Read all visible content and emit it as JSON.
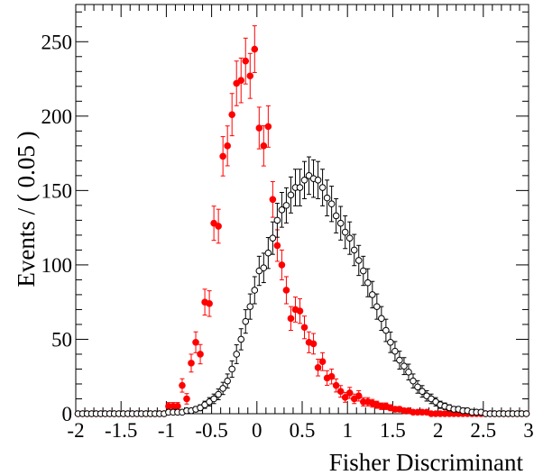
{
  "chart_data": {
    "type": "scatter",
    "title": "",
    "xlabel": "Fisher Discriminant",
    "ylabel": "Events / ( 0.05 )",
    "xlim": [
      -2,
      3
    ],
    "ylim": [
      0,
      275
    ],
    "x_ticks": [
      -2,
      -1.5,
      -1,
      -0.5,
      0,
      0.5,
      1,
      1.5,
      2,
      2.5,
      3
    ],
    "x_tick_labels": [
      "-2",
      "-1.5",
      "-1",
      "-0.5",
      "0",
      "0.5",
      "1",
      "1.5",
      "2",
      "2.5",
      "3"
    ],
    "y_ticks": [
      0,
      50,
      100,
      150,
      200,
      250
    ],
    "y_tick_labels": [
      "0",
      "50",
      "100",
      "150",
      "200",
      "250"
    ],
    "grid": false,
    "legend": "none",
    "series": [
      {
        "marker": "filled-circle",
        "color": "#ff0000",
        "x": [
          -1.975,
          -1.925,
          -1.875,
          -1.825,
          -1.775,
          -1.725,
          -1.675,
          -1.625,
          -1.575,
          -1.525,
          -1.475,
          -1.425,
          -1.375,
          -1.325,
          -1.275,
          -1.225,
          -1.175,
          -1.125,
          -1.075,
          -1.025,
          -0.975,
          -0.925,
          -0.875,
          -0.825,
          -0.775,
          -0.725,
          -0.675,
          -0.625,
          -0.575,
          -0.525,
          -0.475,
          -0.425,
          -0.375,
          -0.325,
          -0.275,
          -0.225,
          -0.175,
          -0.125,
          -0.075,
          -0.025,
          0.025,
          0.075,
          0.125,
          0.175,
          0.225,
          0.275,
          0.325,
          0.375,
          0.425,
          0.475,
          0.525,
          0.575,
          0.625,
          0.675,
          0.725,
          0.775,
          0.825,
          0.875,
          0.925,
          0.975,
          1.025,
          1.075,
          1.125,
          1.175,
          1.225,
          1.275,
          1.325,
          1.375,
          1.425,
          1.475,
          1.525,
          1.575,
          1.625,
          1.675,
          1.725,
          1.775,
          1.825,
          1.875,
          1.925,
          1.975,
          2.025,
          2.075,
          2.125,
          2.175,
          2.225,
          2.275,
          2.325,
          2.375,
          2.425,
          2.475,
          2.525,
          2.575,
          2.625,
          2.675,
          2.725,
          2.775,
          2.825,
          2.875,
          2.925,
          2.975
        ],
        "y": [
          0,
          0,
          0,
          0,
          0,
          0,
          0,
          0,
          0,
          0,
          0,
          0,
          0,
          0,
          0,
          0,
          0,
          0,
          0,
          0,
          5,
          5,
          5,
          19,
          10,
          34,
          48,
          40,
          75,
          74,
          128,
          126,
          173,
          180,
          201,
          222,
          224,
          237,
          227,
          245,
          192,
          180,
          193,
          144,
          113,
          100,
          83,
          64,
          70,
          69,
          58,
          48,
          47,
          31,
          35,
          24,
          25,
          19,
          15,
          11,
          14,
          10,
          12,
          8,
          8,
          7,
          6,
          5,
          5,
          4,
          3,
          3,
          2,
          2,
          1,
          1,
          1,
          1,
          0,
          0,
          0,
          0,
          0,
          0,
          0,
          0,
          0,
          0,
          0,
          0,
          0,
          0,
          0,
          0,
          0,
          0,
          0,
          0,
          0,
          0
        ],
        "err": [
          0,
          0,
          0,
          0,
          0,
          0,
          0,
          0,
          0,
          0,
          0,
          0,
          0,
          0,
          0,
          0,
          0,
          0,
          0,
          0,
          2.5,
          2.5,
          2.5,
          4.5,
          3.5,
          6.0,
          7.0,
          6.5,
          8.7,
          8.6,
          11.5,
          11.4,
          13.2,
          13.4,
          14.2,
          15.0,
          15.0,
          15.4,
          15.1,
          15.7,
          14.0,
          13.5,
          13.9,
          12.0,
          10.6,
          10.0,
          9.1,
          8.0,
          8.4,
          8.3,
          7.6,
          7.0,
          6.9,
          5.6,
          6.0,
          4.9,
          5.0,
          4.4,
          3.9,
          3.3,
          3.7,
          3.2,
          3.5,
          2.8,
          2.8,
          2.6,
          2.4,
          2.2,
          2.2,
          2.0,
          1.7,
          1.7,
          1.5,
          1.5,
          1.0,
          1.0,
          1.0,
          1.0,
          0,
          0,
          0,
          0,
          0,
          0,
          0,
          0,
          0,
          0,
          0,
          0,
          0,
          0,
          0,
          0,
          0,
          0,
          0,
          0,
          0,
          0
        ]
      },
      {
        "marker": "open-circle",
        "color": "#000000",
        "x": [
          -1.975,
          -1.925,
          -1.875,
          -1.825,
          -1.775,
          -1.725,
          -1.675,
          -1.625,
          -1.575,
          -1.525,
          -1.475,
          -1.425,
          -1.375,
          -1.325,
          -1.275,
          -1.225,
          -1.175,
          -1.125,
          -1.075,
          -1.025,
          -0.975,
          -0.925,
          -0.875,
          -0.825,
          -0.775,
          -0.725,
          -0.675,
          -0.625,
          -0.575,
          -0.525,
          -0.475,
          -0.425,
          -0.375,
          -0.325,
          -0.275,
          -0.225,
          -0.175,
          -0.125,
          -0.075,
          -0.025,
          0.025,
          0.075,
          0.125,
          0.175,
          0.225,
          0.275,
          0.325,
          0.375,
          0.425,
          0.475,
          0.525,
          0.575,
          0.625,
          0.675,
          0.725,
          0.775,
          0.825,
          0.875,
          0.925,
          0.975,
          1.025,
          1.075,
          1.125,
          1.175,
          1.225,
          1.275,
          1.325,
          1.375,
          1.425,
          1.475,
          1.525,
          1.575,
          1.625,
          1.675,
          1.725,
          1.775,
          1.825,
          1.875,
          1.925,
          1.975,
          2.025,
          2.075,
          2.125,
          2.175,
          2.225,
          2.275,
          2.325,
          2.375,
          2.425,
          2.475,
          2.525,
          2.575,
          2.625,
          2.675,
          2.725,
          2.775,
          2.825,
          2.875,
          2.925,
          2.975
        ],
        "y": [
          0,
          0,
          0,
          0,
          0,
          0,
          0,
          0,
          0,
          0,
          0,
          0,
          0,
          0,
          0,
          0,
          0,
          0,
          0,
          0,
          1,
          1,
          1,
          1,
          2,
          2,
          3,
          4,
          6,
          8,
          10,
          13,
          17,
          22,
          30,
          40,
          50,
          62,
          72,
          83,
          96,
          98,
          108,
          118,
          130,
          137,
          140,
          147,
          152,
          152,
          157,
          160,
          158,
          157,
          152,
          145,
          141,
          133,
          128,
          122,
          118,
          110,
          103,
          96,
          88,
          80,
          72,
          64,
          56,
          48,
          42,
          36,
          32,
          28,
          22,
          18,
          15,
          12,
          10,
          8,
          6,
          5,
          4,
          3,
          3,
          2,
          2,
          1,
          1,
          1,
          0,
          0,
          0,
          0,
          0,
          0,
          0,
          0,
          0,
          0
        ],
        "err": [
          0,
          0,
          0,
          0,
          0,
          0,
          0,
          0,
          0,
          0,
          0,
          0,
          0,
          0,
          0,
          0,
          0,
          0,
          0,
          0,
          1.0,
          1.0,
          1.0,
          1.0,
          1.4,
          1.4,
          1.7,
          2.0,
          2.4,
          2.8,
          3.2,
          3.6,
          4.1,
          4.7,
          5.5,
          6.3,
          7.1,
          7.9,
          8.5,
          9.1,
          9.8,
          9.9,
          10.4,
          10.9,
          11.4,
          11.7,
          11.8,
          12.1,
          12.3,
          12.3,
          12.5,
          12.6,
          12.6,
          12.5,
          12.3,
          12.0,
          11.9,
          11.5,
          11.3,
          11.0,
          10.9,
          10.5,
          10.1,
          9.8,
          9.4,
          8.9,
          8.5,
          8.0,
          7.5,
          6.9,
          6.5,
          6.0,
          5.7,
          5.3,
          4.7,
          4.2,
          3.9,
          3.5,
          3.2,
          2.8,
          2.4,
          2.2,
          2.0,
          1.7,
          1.7,
          1.4,
          1.4,
          1.0,
          1.0,
          1.0,
          0,
          0,
          0,
          0,
          0,
          0,
          0,
          0,
          0,
          0
        ]
      }
    ]
  }
}
